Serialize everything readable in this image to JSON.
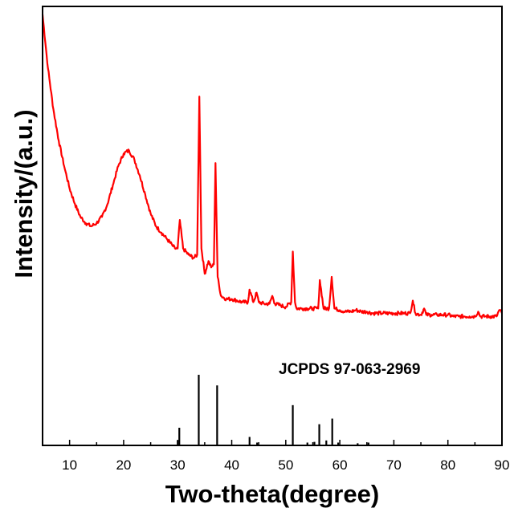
{
  "chart_data": {
    "type": "line",
    "xlabel": "Two-theta(degree)",
    "ylabel": "Intensity/(a.u.)",
    "xlim": [
      5,
      90
    ],
    "x_ticks": [
      10,
      20,
      30,
      40,
      50,
      60,
      70,
      80,
      90
    ],
    "y_ticks_shown": false,
    "grid": false,
    "line_color": "#ff0000",
    "reference_color": "#000000",
    "series": [
      {
        "x": [
          5,
          6,
          7,
          8,
          9,
          10,
          11,
          12,
          13,
          14,
          15,
          16,
          17,
          18,
          19,
          20,
          21,
          22,
          23,
          24,
          25,
          26,
          27,
          28,
          29,
          29.5,
          30,
          30.4,
          31,
          32,
          33,
          33.6,
          34.0,
          34.4,
          35,
          35.7,
          36.2,
          36.7,
          37.0,
          37.4,
          38,
          39,
          40,
          41,
          42,
          43,
          43.3,
          44,
          44.6,
          45,
          46,
          47,
          47.5,
          48,
          49,
          50,
          51,
          51.3,
          51.7,
          52,
          53,
          54,
          55,
          56,
          56.3,
          57,
          58,
          58.5,
          59,
          60,
          61,
          62,
          63,
          64,
          65,
          66,
          67,
          68,
          69,
          70,
          71,
          72,
          73,
          73.5,
          74,
          75,
          75.6,
          76,
          77,
          78,
          79,
          80,
          81,
          82,
          83,
          84,
          85,
          85.6,
          86,
          87,
          88,
          89,
          89.5,
          90
        ],
        "y": [
          100,
          83,
          70,
          60,
          52,
          45,
          40,
          36,
          34,
          33,
          34,
          36,
          40,
          46,
          52,
          56,
          57,
          54,
          49,
          43,
          37,
          33,
          31,
          29,
          27,
          26,
          26,
          35,
          26,
          24,
          23,
          24,
          74,
          26,
          18,
          22,
          20,
          21,
          53,
          17,
          11,
          10,
          10,
          9.5,
          9,
          9,
          13,
          9,
          12,
          9,
          8.5,
          8.5,
          11,
          8.5,
          8,
          7.5,
          9,
          25,
          9,
          7,
          7,
          7,
          7,
          7,
          16,
          7,
          7,
          17,
          7,
          6.5,
          6,
          6,
          6.5,
          6,
          6,
          5.5,
          5.5,
          5.5,
          5.5,
          5.5,
          5.5,
          5.5,
          5.5,
          9.5,
          5.5,
          5,
          7,
          5,
          5,
          5,
          5,
          5,
          4.5,
          4.5,
          4.5,
          4.5,
          4.5,
          6,
          4.5,
          4.5,
          4.5,
          4.5,
          6.5,
          5.5
        ]
      }
    ],
    "reference": {
      "label": "JCPDS 97-063-2969",
      "positions": [
        30.0,
        30.3,
        33.9,
        37.3,
        43.3,
        44.7,
        51.3,
        54.0,
        55.3,
        56.2,
        57.5,
        58.6,
        59.7,
        63.3,
        65.3
      ],
      "intensities": [
        7,
        25,
        100,
        85,
        12,
        4,
        57,
        4,
        5,
        30,
        7,
        38,
        4,
        3,
        4
      ]
    }
  }
}
